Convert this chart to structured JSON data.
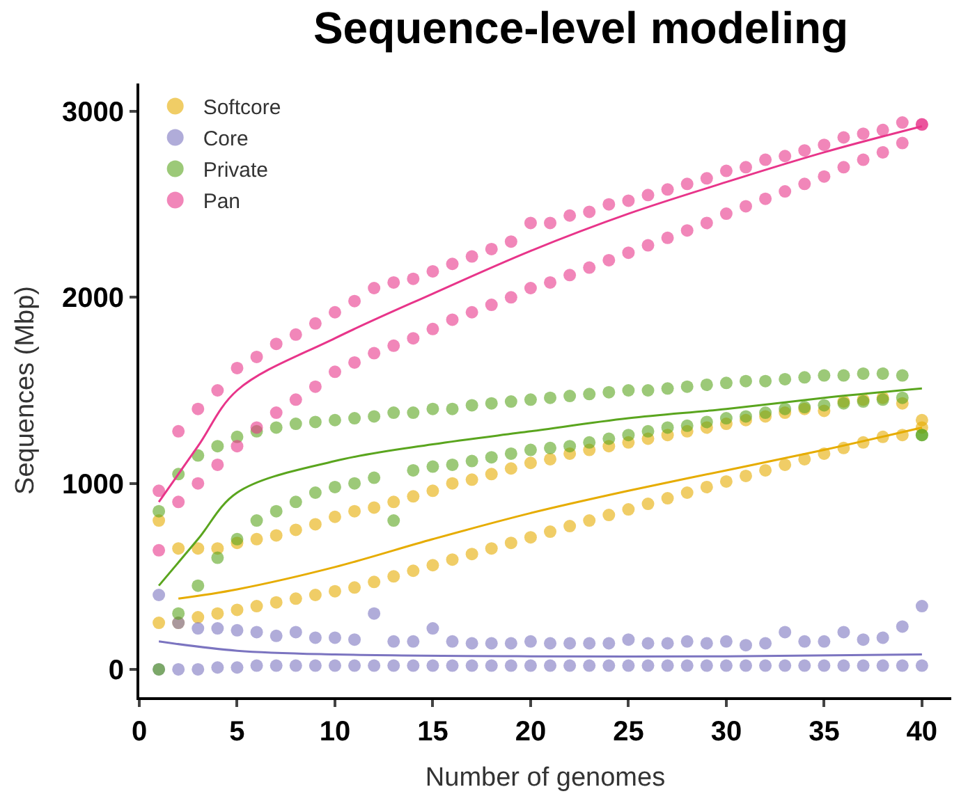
{
  "chart_data": {
    "type": "scatter",
    "title": "Sequence-level modeling",
    "xlabel": "Number of genomes",
    "ylabel": "Sequences (Mbp)",
    "xlim": [
      0,
      41.5
    ],
    "xticks": [
      0,
      5,
      10,
      15,
      20,
      25,
      30,
      35,
      40
    ],
    "ylim": [
      -150,
      3150
    ],
    "yticks": [
      0,
      1000,
      2000,
      3000
    ],
    "legend": "top left",
    "marker": "circle",
    "series": [
      {
        "name": "Softcore",
        "color": "#e6ac00",
        "x": [
          1,
          2,
          3,
          4,
          5,
          6,
          7,
          8,
          9,
          10,
          11,
          12,
          13,
          14,
          15,
          16,
          17,
          18,
          19,
          20,
          21,
          22,
          23,
          24,
          25,
          26,
          27,
          28,
          29,
          30,
          31,
          32,
          33,
          34,
          35,
          36,
          37,
          38,
          39,
          40,
          1,
          2,
          3,
          4,
          5,
          6,
          7,
          8,
          9,
          10,
          11,
          12,
          13,
          14,
          15,
          16,
          17,
          18,
          19,
          20,
          21,
          22,
          23,
          24,
          25,
          26,
          27,
          28,
          29,
          30,
          31,
          32,
          33,
          34,
          35,
          36,
          37,
          38,
          39,
          40
        ],
        "values": [
          250,
          250,
          280,
          300,
          320,
          340,
          360,
          380,
          400,
          420,
          440,
          470,
          500,
          530,
          560,
          590,
          620,
          650,
          680,
          710,
          740,
          770,
          800,
          830,
          860,
          890,
          920,
          950,
          980,
          1010,
          1040,
          1070,
          1100,
          1130,
          1160,
          1190,
          1220,
          1250,
          1260,
          1300,
          800,
          650,
          650,
          650,
          680,
          700,
          720,
          750,
          780,
          820,
          850,
          870,
          900,
          930,
          960,
          1000,
          1020,
          1050,
          1080,
          1110,
          1130,
          1160,
          1180,
          1200,
          1220,
          1240,
          1260,
          1280,
          1300,
          1320,
          1340,
          1360,
          1380,
          1400,
          1390,
          1440,
          1450,
          1460,
          1430,
          1340
        ]
      },
      {
        "name": "Core",
        "color": "#7b74c0",
        "x": [
          1,
          2,
          3,
          4,
          5,
          6,
          7,
          8,
          9,
          10,
          11,
          12,
          13,
          14,
          15,
          16,
          17,
          18,
          19,
          20,
          21,
          22,
          23,
          24,
          25,
          26,
          27,
          28,
          29,
          30,
          31,
          32,
          33,
          34,
          35,
          36,
          37,
          38,
          39,
          40,
          1,
          2,
          3,
          4,
          5,
          6,
          7,
          8,
          9,
          10,
          11,
          12,
          13,
          14,
          15,
          16,
          17,
          18,
          19,
          20,
          21,
          22,
          23,
          24,
          25,
          26,
          27,
          28,
          29,
          30,
          31,
          32,
          33,
          34,
          35,
          36,
          37,
          38,
          39,
          40
        ],
        "values": [
          0,
          0,
          0,
          10,
          10,
          20,
          20,
          20,
          20,
          20,
          20,
          20,
          20,
          20,
          20,
          20,
          20,
          20,
          20,
          20,
          20,
          20,
          20,
          20,
          20,
          20,
          20,
          20,
          20,
          20,
          20,
          20,
          20,
          20,
          20,
          20,
          20,
          20,
          20,
          20,
          400,
          250,
          220,
          220,
          210,
          200,
          180,
          200,
          170,
          170,
          160,
          300,
          150,
          150,
          220,
          150,
          140,
          140,
          140,
          150,
          140,
          140,
          140,
          140,
          160,
          140,
          140,
          150,
          140,
          150,
          130,
          140,
          200,
          150,
          150,
          200,
          160,
          170,
          230,
          340
        ]
      },
      {
        "name": "Private",
        "color": "#5aa51e",
        "x": [
          1,
          2,
          3,
          4,
          5,
          6,
          7,
          8,
          9,
          10,
          11,
          12,
          13,
          14,
          15,
          16,
          17,
          18,
          19,
          20,
          21,
          22,
          23,
          24,
          25,
          26,
          27,
          28,
          29,
          30,
          31,
          32,
          33,
          34,
          35,
          36,
          37,
          38,
          39,
          40,
          1,
          2,
          3,
          4,
          5,
          6,
          7,
          8,
          9,
          10,
          11,
          12,
          13,
          14,
          15,
          16,
          17,
          18,
          19,
          20,
          21,
          22,
          23,
          24,
          25,
          26,
          27,
          28,
          29,
          30,
          31,
          32,
          33,
          34,
          35,
          36,
          37,
          38,
          39,
          40
        ],
        "values": [
          0,
          300,
          450,
          600,
          700,
          800,
          850,
          900,
          950,
          980,
          1000,
          1030,
          800,
          1070,
          1090,
          1100,
          1120,
          1140,
          1160,
          1180,
          1190,
          1200,
          1220,
          1240,
          1260,
          1280,
          1300,
          1310,
          1330,
          1350,
          1360,
          1380,
          1400,
          1410,
          1420,
          1430,
          1440,
          1450,
          1460,
          1260,
          850,
          1050,
          1150,
          1200,
          1250,
          1280,
          1300,
          1320,
          1330,
          1340,
          1350,
          1360,
          1380,
          1380,
          1400,
          1400,
          1420,
          1430,
          1440,
          1450,
          1460,
          1470,
          1480,
          1490,
          1500,
          1500,
          1510,
          1520,
          1530,
          1540,
          1550,
          1550,
          1560,
          1570,
          1580,
          1580,
          1590,
          1590,
          1580,
          1260
        ]
      },
      {
        "name": "Pan",
        "color": "#e8358a",
        "x": [
          1,
          2,
          3,
          4,
          5,
          6,
          7,
          8,
          9,
          10,
          11,
          12,
          13,
          14,
          15,
          16,
          17,
          18,
          19,
          20,
          21,
          22,
          23,
          24,
          25,
          26,
          27,
          28,
          29,
          30,
          31,
          32,
          33,
          34,
          35,
          36,
          37,
          38,
          39,
          40,
          1,
          2,
          3,
          4,
          5,
          6,
          7,
          8,
          9,
          10,
          11,
          12,
          13,
          14,
          15,
          16,
          17,
          18,
          19,
          20,
          21,
          22,
          23,
          24,
          25,
          26,
          27,
          28,
          29,
          30,
          31,
          32,
          33,
          34,
          35,
          36,
          37,
          38,
          39,
          40
        ],
        "values": [
          640,
          900,
          1000,
          1100,
          1200,
          1300,
          1380,
          1450,
          1520,
          1600,
          1650,
          1700,
          1740,
          1780,
          1830,
          1880,
          1920,
          1960,
          2000,
          2050,
          2080,
          2120,
          2160,
          2200,
          2240,
          2280,
          2320,
          2360,
          2400,
          2450,
          2490,
          2530,
          2570,
          2610,
          2650,
          2700,
          2740,
          2780,
          2830,
          2930,
          960,
          1280,
          1400,
          1500,
          1620,
          1680,
          1750,
          1800,
          1860,
          1920,
          1980,
          2050,
          2080,
          2100,
          2140,
          2180,
          2220,
          2260,
          2300,
          2400,
          2400,
          2440,
          2460,
          2500,
          2520,
          2550,
          2580,
          2610,
          2640,
          2680,
          2700,
          2740,
          2760,
          2790,
          2820,
          2860,
          2880,
          2900,
          2940,
          2930
        ]
      },
      {
        "type": "line",
        "marker": "none",
        "color": "#e6ac00",
        "x": [
          2,
          5,
          10,
          15,
          20,
          25,
          30,
          35,
          40
        ],
        "values": [
          380,
          430,
          550,
          700,
          840,
          960,
          1070,
          1180,
          1300
        ]
      },
      {
        "type": "line",
        "marker": "none",
        "color": "#7b74c0",
        "x": [
          1,
          5,
          10,
          20,
          30,
          40
        ],
        "values": [
          150,
          100,
          80,
          70,
          70,
          80
        ]
      },
      {
        "type": "line",
        "marker": "none",
        "color": "#5aa51e",
        "x": [
          1,
          3,
          5,
          10,
          15,
          20,
          25,
          30,
          35,
          40
        ],
        "values": [
          450,
          700,
          950,
          1120,
          1210,
          1280,
          1350,
          1400,
          1460,
          1510
        ]
      },
      {
        "type": "line",
        "marker": "none",
        "color": "#e8358a",
        "x": [
          1,
          3,
          5,
          10,
          15,
          20,
          25,
          30,
          35,
          40
        ],
        "values": [
          900,
          1200,
          1500,
          1780,
          2020,
          2250,
          2450,
          2620,
          2780,
          2920
        ]
      }
    ]
  }
}
